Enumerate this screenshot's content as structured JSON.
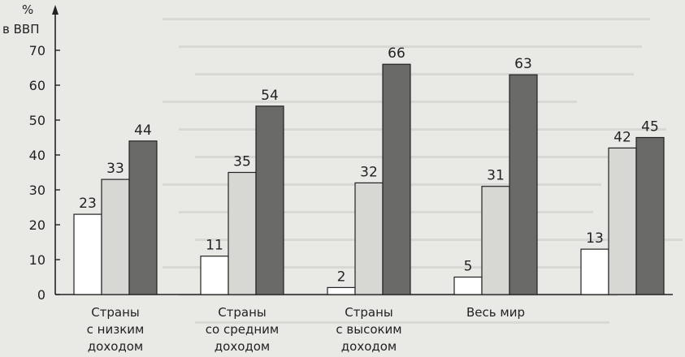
{
  "chart_data": {
    "type": "bar",
    "ylabel": [
      "%",
      "в ВВП"
    ],
    "ylim": [
      0,
      70
    ],
    "yticks": [
      0,
      10,
      20,
      30,
      40,
      50,
      60,
      70
    ],
    "grid": false,
    "categories": [
      [
        "Страны",
        "с низким",
        "доходом"
      ],
      [
        "Страны",
        "со средним",
        "доходом"
      ],
      [
        "Страны",
        "с высоким",
        "доходом"
      ],
      [
        "Весь мир"
      ],
      []
    ],
    "series": [
      {
        "values": [
          23,
          11,
          2,
          5,
          13
        ],
        "color": "#ffffff"
      },
      {
        "values": [
          33,
          35,
          32,
          31,
          42
        ],
        "color": "#d7d7d4"
      },
      {
        "values": [
          44,
          54,
          66,
          63,
          45
        ],
        "color": "#6a6a68"
      }
    ]
  },
  "colors": {
    "background": "#e9e9e6",
    "axis": "#222222"
  }
}
